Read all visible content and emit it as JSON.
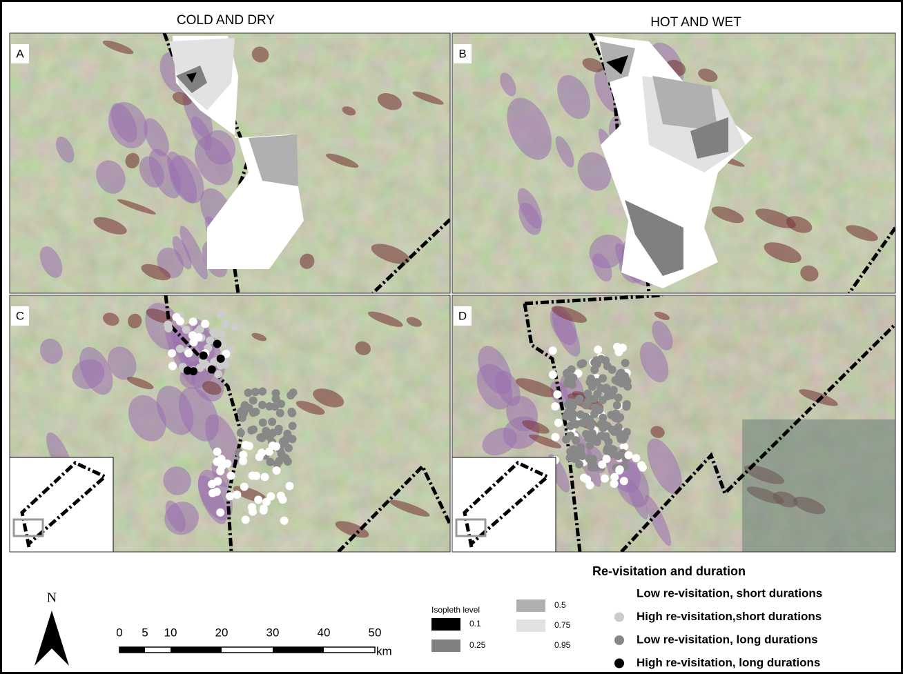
{
  "columns": [
    "COLD AND DRY",
    "HOT AND WET"
  ],
  "panels": [
    {
      "label": "A"
    },
    {
      "label": "B"
    },
    {
      "label": "C"
    },
    {
      "label": "D"
    }
  ],
  "north_arrow": "N",
  "scale_bar": {
    "ticks": [
      0,
      5,
      10,
      20,
      30,
      40,
      50
    ],
    "unit": "km"
  },
  "isopleth_legend": {
    "title": "Isopleth level",
    "levels": [
      {
        "label": "0.1",
        "color": "#000000"
      },
      {
        "label": "0.25",
        "color": "#808080"
      },
      {
        "label": "0.5",
        "color": "#b0b0b0"
      },
      {
        "label": "0.75",
        "color": "#e2e2e2"
      },
      {
        "label": "0.95",
        "color": "#ffffff"
      }
    ]
  },
  "revisitation_legend": {
    "title": "Re-visitation and duration",
    "items": [
      {
        "label": "Low re-visitation, short durations",
        "color": "#ffffff"
      },
      {
        "label": "High re-visitation,short durations",
        "color": "#cccccc"
      },
      {
        "label": "Low re-visitation, long durations",
        "color": "#888888"
      },
      {
        "label": "High re-visitation, long durations",
        "color": "#000000"
      }
    ]
  }
}
